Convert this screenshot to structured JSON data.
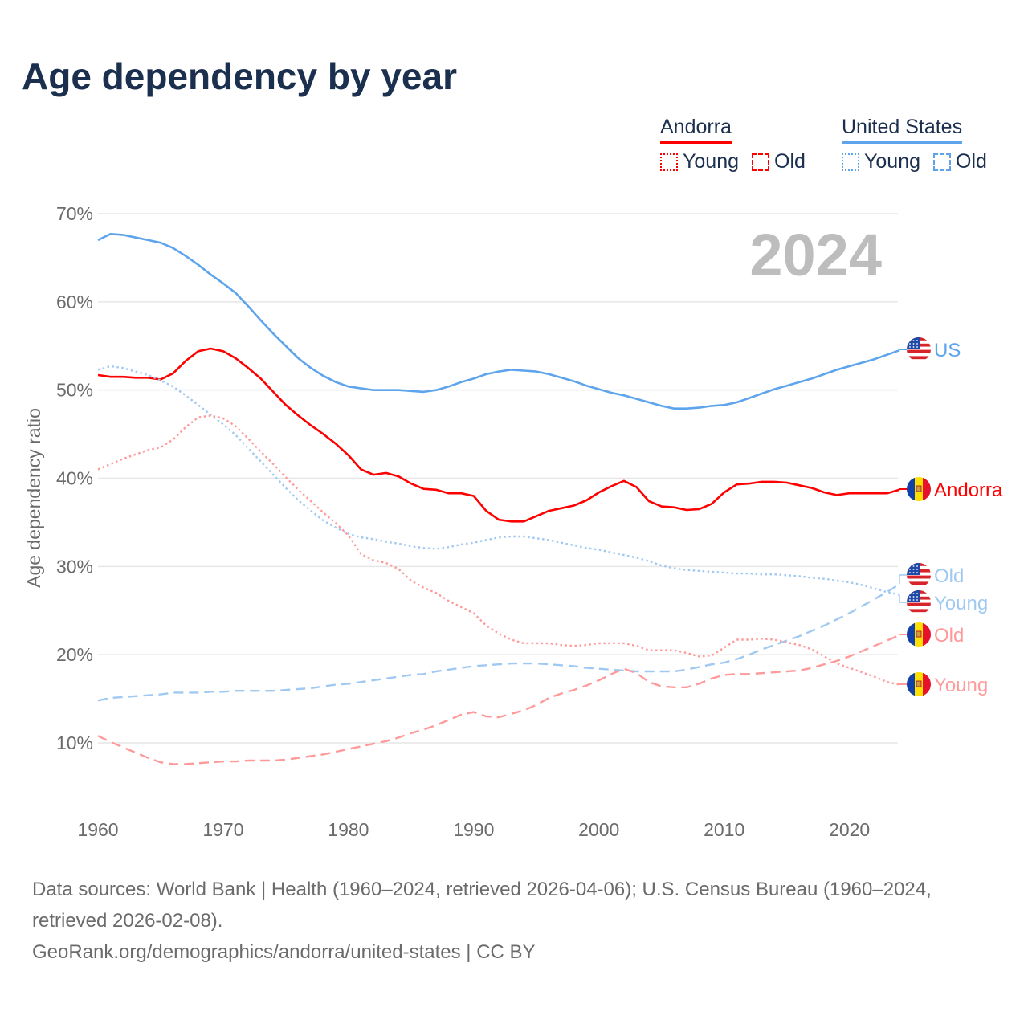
{
  "title": "Age dependency by year",
  "legend": {
    "groups": [
      {
        "name": "Andorra",
        "color": "#ff0000",
        "light": "#ff9a9a",
        "items": [
          "Young",
          "Old"
        ]
      },
      {
        "name": "United States",
        "color": "#5ea4ec",
        "light": "#a0c9f2",
        "items": [
          "Young",
          "Old"
        ]
      }
    ]
  },
  "year_watermark": "2024",
  "footer": {
    "sources": "Data sources: World Bank | Health (1960–2024, retrieved 2026-04-06); U.S. Census Bureau (1960–2024, retrieved 2026-02-08).",
    "credit": "GeoRank.org/demographics/andorra/united-states | CC BY"
  },
  "chart_data": {
    "type": "line",
    "title": "Age dependency by year",
    "xlabel": "",
    "ylabel": "Age dependency ratio",
    "xlim": [
      1960,
      2024
    ],
    "ylim": [
      3,
      72
    ],
    "x_ticks": [
      1960,
      1970,
      1980,
      1990,
      2000,
      2010,
      2020
    ],
    "y_ticks": [
      10,
      20,
      30,
      40,
      50,
      60,
      70
    ],
    "y_tick_labels": [
      "10%",
      "20%",
      "30%",
      "40%",
      "50%",
      "60%",
      "70%"
    ],
    "grid": true,
    "x_start": 1960,
    "series": [
      {
        "name": "United States",
        "end_label": "US",
        "flag": "us",
        "style": "solid",
        "color": "#5ea4ec",
        "values": [
          67.0,
          67.7,
          67.6,
          67.3,
          67.0,
          66.7,
          66.1,
          65.2,
          64.2,
          63.1,
          62.1,
          61.0,
          59.5,
          57.9,
          56.4,
          55.0,
          53.6,
          52.5,
          51.6,
          50.9,
          50.4,
          50.2,
          50.0,
          50.0,
          50.0,
          49.9,
          49.8,
          50.0,
          50.4,
          50.9,
          51.3,
          51.8,
          52.1,
          52.3,
          52.2,
          52.1,
          51.8,
          51.4,
          51.0,
          50.5,
          50.1,
          49.7,
          49.4,
          49.0,
          48.6,
          48.2,
          47.9,
          47.9,
          48.0,
          48.2,
          48.3,
          48.6,
          49.1,
          49.6,
          50.1,
          50.5,
          50.9,
          51.3,
          51.8,
          52.3,
          52.7,
          53.1,
          53.5,
          54.0,
          54.5
        ]
      },
      {
        "name": "Andorra",
        "end_label": "Andorra",
        "flag": "ad",
        "style": "solid",
        "color": "#ff0000",
        "values": [
          51.7,
          51.5,
          51.5,
          51.4,
          51.4,
          51.2,
          51.9,
          53.3,
          54.4,
          54.7,
          54.4,
          53.6,
          52.5,
          51.3,
          49.8,
          48.3,
          47.1,
          46.0,
          45.0,
          43.9,
          42.6,
          41.0,
          40.4,
          40.6,
          40.2,
          39.4,
          38.8,
          38.7,
          38.3,
          38.3,
          38.0,
          36.3,
          35.3,
          35.1,
          35.1,
          35.7,
          36.3,
          36.6,
          36.9,
          37.5,
          38.4,
          39.1,
          39.7,
          39.0,
          37.4,
          36.8,
          36.7,
          36.4,
          36.5,
          37.1,
          38.4,
          39.3,
          39.4,
          39.6,
          39.6,
          39.5,
          39.2,
          38.9,
          38.4,
          38.1,
          38.3,
          38.3,
          38.3,
          38.3,
          38.7
        ]
      },
      {
        "name": "United States Old",
        "end_label": "Old",
        "flag": "us",
        "style": "dashed",
        "color": "#a0c9f2",
        "values": [
          14.8,
          15.1,
          15.2,
          15.3,
          15.4,
          15.5,
          15.7,
          15.7,
          15.7,
          15.8,
          15.8,
          15.9,
          15.9,
          15.9,
          15.9,
          16.0,
          16.1,
          16.2,
          16.4,
          16.6,
          16.7,
          16.9,
          17.1,
          17.3,
          17.5,
          17.7,
          17.8,
          18.1,
          18.3,
          18.5,
          18.7,
          18.8,
          18.9,
          19.0,
          19.0,
          19.0,
          18.9,
          18.8,
          18.7,
          18.5,
          18.4,
          18.3,
          18.2,
          18.1,
          18.1,
          18.1,
          18.1,
          18.3,
          18.6,
          18.9,
          19.1,
          19.5,
          20.0,
          20.6,
          21.1,
          21.6,
          22.1,
          22.7,
          23.3,
          24.0,
          24.7,
          25.5,
          26.3,
          27.1,
          28.0
        ]
      },
      {
        "name": "United States Young",
        "end_label": "Young",
        "flag": "us",
        "style": "dotted",
        "color": "#a0c9f2",
        "values": [
          52.3,
          52.7,
          52.5,
          52.1,
          51.7,
          51.1,
          50.4,
          49.4,
          48.3,
          47.2,
          46.1,
          44.9,
          43.4,
          41.9,
          40.4,
          38.9,
          37.5,
          36.3,
          35.2,
          34.4,
          33.7,
          33.3,
          33.1,
          32.8,
          32.6,
          32.3,
          32.1,
          32.0,
          32.2,
          32.5,
          32.7,
          33.0,
          33.3,
          33.4,
          33.4,
          33.2,
          33.0,
          32.7,
          32.4,
          32.1,
          31.9,
          31.6,
          31.3,
          31.0,
          30.6,
          30.1,
          29.8,
          29.6,
          29.5,
          29.4,
          29.3,
          29.2,
          29.2,
          29.1,
          29.1,
          29.0,
          28.9,
          28.7,
          28.6,
          28.4,
          28.2,
          27.9,
          27.5,
          27.1,
          26.8
        ]
      },
      {
        "name": "Andorra Old",
        "end_label": "Old",
        "flag": "ad",
        "style": "dashed",
        "color": "#ff9a9a",
        "values": [
          10.8,
          10.1,
          9.5,
          8.9,
          8.3,
          7.8,
          7.6,
          7.6,
          7.7,
          7.8,
          7.9,
          7.9,
          8.0,
          8.0,
          8.0,
          8.1,
          8.3,
          8.5,
          8.7,
          9.0,
          9.3,
          9.6,
          9.9,
          10.2,
          10.6,
          11.1,
          11.5,
          12.0,
          12.6,
          13.2,
          13.5,
          13.0,
          12.9,
          13.3,
          13.7,
          14.3,
          15.1,
          15.6,
          16.0,
          16.5,
          17.1,
          17.8,
          18.4,
          17.9,
          16.9,
          16.4,
          16.3,
          16.3,
          16.7,
          17.3,
          17.7,
          17.8,
          17.8,
          17.9,
          18.0,
          18.1,
          18.2,
          18.5,
          18.9,
          19.3,
          19.8,
          20.4,
          21.0,
          21.6,
          22.2
        ]
      },
      {
        "name": "Andorra Young",
        "end_label": "Young",
        "flag": "ad",
        "style": "dotted",
        "color": "#ff9a9a",
        "values": [
          41.0,
          41.6,
          42.2,
          42.7,
          43.2,
          43.5,
          44.4,
          45.8,
          46.9,
          47.1,
          46.8,
          45.9,
          44.5,
          43.0,
          41.6,
          40.1,
          38.7,
          37.4,
          36.1,
          34.9,
          33.5,
          31.4,
          30.7,
          30.4,
          29.7,
          28.4,
          27.6,
          27.0,
          26.1,
          25.4,
          24.7,
          23.3,
          22.4,
          21.7,
          21.3,
          21.3,
          21.3,
          21.1,
          21.0,
          21.1,
          21.3,
          21.3,
          21.3,
          21.0,
          20.5,
          20.5,
          20.5,
          20.2,
          19.8,
          19.9,
          20.8,
          21.7,
          21.7,
          21.8,
          21.7,
          21.4,
          21.1,
          20.6,
          19.8,
          19.0,
          18.5,
          18.0,
          17.5,
          16.9,
          16.6
        ]
      }
    ]
  }
}
